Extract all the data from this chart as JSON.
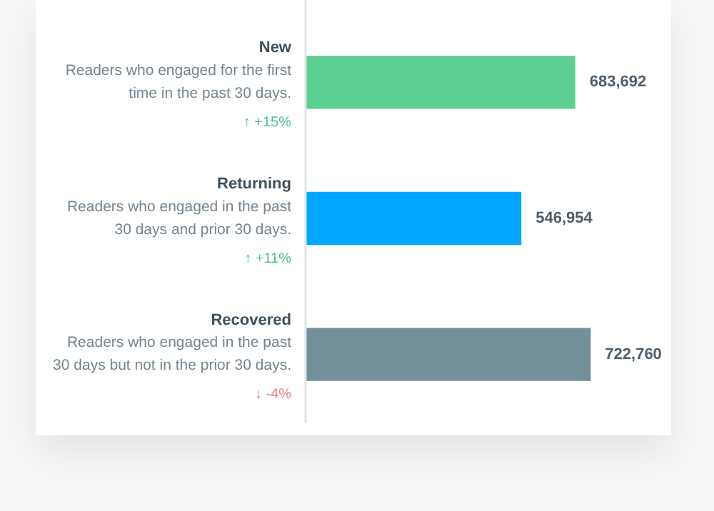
{
  "chart_data": {
    "type": "bar",
    "orientation": "horizontal",
    "categories": [
      "New",
      "Returning",
      "Recovered"
    ],
    "values": [
      683692,
      546954,
      722760
    ],
    "value_labels": [
      "683,692",
      "546,954",
      "722,760"
    ],
    "colors": [
      "#5dcf93",
      "#00a6ff",
      "#73909a"
    ],
    "annotations": [
      "Readers who engaged for the first time in the past 30 days.",
      "↑ +15%",
      "Readers who engaged in the past 30 days and prior 30 days.",
      "↑ +11%",
      "Readers who engaged in the past 30 days but not in the prior 30 days.",
      "↓ -4%"
    ]
  }
}
